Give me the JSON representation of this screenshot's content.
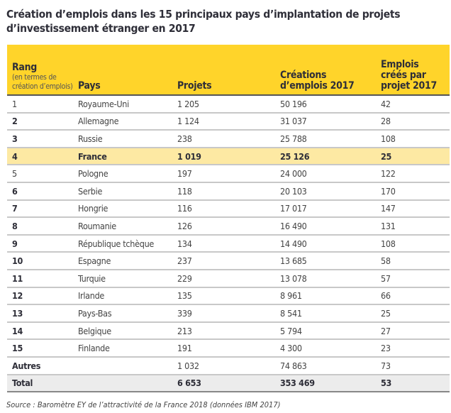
{
  "title": "Création d’emplois dans les 15 principaux pays d’implantation de projets d’investissement étranger en 2017",
  "headers": {
    "rang": "Rang",
    "rang_sub": "(en termes de création d’emplois)",
    "pays": "Pays",
    "projets": "Projets",
    "creations": "Créations d’emplois 2017",
    "emplois": "Emplois créés par projet 2017"
  },
  "rows": [
    {
      "rang": "1",
      "pays": "Royaume-Uni",
      "projets": "1 205",
      "creations": "50 196",
      "emplois": "42"
    },
    {
      "rang": "2",
      "pays": "Allemagne",
      "projets": "1 124",
      "creations": "31 037",
      "emplois": "28"
    },
    {
      "rang": "3",
      "pays": "Russie",
      "projets": "238",
      "creations": "25 788",
      "emplois": "108"
    },
    {
      "rang": "4",
      "pays": "France",
      "projets": "1 019",
      "creations": "25 126",
      "emplois": "25"
    },
    {
      "rang": "5",
      "pays": "Pologne",
      "projets": "197",
      "creations": "24 000",
      "emplois": "122"
    },
    {
      "rang": "6",
      "pays": "Serbie",
      "projets": "118",
      "creations": "20 103",
      "emplois": "170"
    },
    {
      "rang": "7",
      "pays": "Hongrie",
      "projets": "116",
      "creations": "17 017",
      "emplois": "147"
    },
    {
      "rang": "8",
      "pays": "Roumanie",
      "projets": "126",
      "creations": "16 490",
      "emplois": "131"
    },
    {
      "rang": "9",
      "pays": "République tchèque",
      "projets": "134",
      "creations": "14 490",
      "emplois": "108"
    },
    {
      "rang": "10",
      "pays": "Espagne",
      "projets": "237",
      "creations": "13 685",
      "emplois": "58"
    },
    {
      "rang": "11",
      "pays": "Turquie",
      "projets": "229",
      "creations": "13 078",
      "emplois": "57"
    },
    {
      "rang": "12",
      "pays": "Irlande",
      "projets": "135",
      "creations": "8 961",
      "emplois": "66"
    },
    {
      "rang": "13",
      "pays": "Pays-Bas",
      "projets": "339",
      "creations": "8 541",
      "emplois": "25"
    },
    {
      "rang": "14",
      "pays": "Belgique",
      "projets": "213",
      "creations": "5 794",
      "emplois": "27"
    },
    {
      "rang": "15",
      "pays": "Finlande",
      "projets": "191",
      "creations": "4 300",
      "emplois": "23"
    },
    {
      "rang": "Autres",
      "pays": "",
      "projets": "1 032",
      "creations": "74 863",
      "emplois": "73"
    }
  ],
  "total": {
    "rang": "Total",
    "pays": "",
    "projets": "6 653",
    "creations": "353 469",
    "emplois": "53"
  },
  "highlight_color": "#fde9a3",
  "header_color": "#ffd42a",
  "source": "Source : Baromètre EY de l’attractivité de la France 2018 (données IBM 2017)"
}
